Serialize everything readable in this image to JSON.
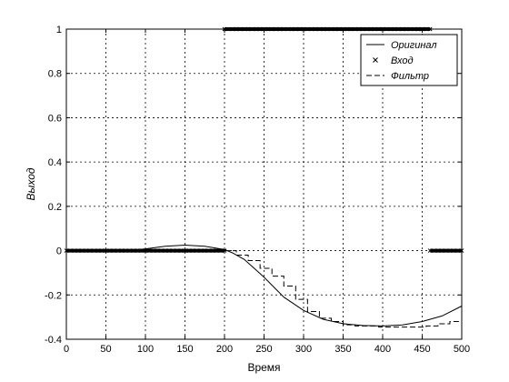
{
  "chart_data": {
    "type": "line",
    "title": "",
    "xlabel": "Время",
    "ylabel": "Выход",
    "xlim": [
      0,
      500
    ],
    "ylim": [
      -0.4,
      1
    ],
    "xticks": [
      0,
      50,
      100,
      150,
      200,
      250,
      300,
      350,
      400,
      450,
      500
    ],
    "yticks": [
      -0.4,
      -0.2,
      0,
      0.2,
      0.4,
      0.6,
      0.8,
      1
    ],
    "ytick_labels": [
      "-0.4",
      "-0.2",
      "0",
      "0.2",
      "0.4",
      "0.6",
      "0.8",
      "1"
    ],
    "grid": true,
    "legend_position": "top-right",
    "series": [
      {
        "name": "Оригинал",
        "style": "solid",
        "x": [
          70,
          100,
          125,
          150,
          175,
          200,
          210,
          225,
          250,
          275,
          300,
          325,
          350,
          375,
          400,
          425,
          450,
          475,
          500
        ],
        "y": [
          -0.002,
          0.008,
          0.02,
          0.025,
          0.02,
          0.005,
          -0.01,
          -0.04,
          -0.12,
          -0.21,
          -0.27,
          -0.31,
          -0.33,
          -0.338,
          -0.34,
          -0.335,
          -0.32,
          -0.295,
          -0.25
        ]
      },
      {
        "name": "Вход",
        "style": "markers-x",
        "segments": [
          {
            "x": [
              0,
              200
            ],
            "y": 0
          },
          {
            "x": [
              200,
              460
            ],
            "y": 1
          },
          {
            "x": [
              460,
              500
            ],
            "y": 0
          }
        ]
      },
      {
        "name": "Фильтр",
        "style": "dashed",
        "x": [
          200,
          215,
          230,
          245,
          260,
          275,
          290,
          305,
          320,
          335,
          350,
          365,
          380,
          395,
          410,
          425,
          440,
          455,
          470,
          485,
          500
        ],
        "y": [
          0,
          -0.02,
          -0.045,
          -0.08,
          -0.115,
          -0.16,
          -0.22,
          -0.275,
          -0.305,
          -0.32,
          -0.335,
          -0.34,
          -0.34,
          -0.345,
          -0.345,
          -0.345,
          -0.345,
          -0.34,
          -0.33,
          -0.32,
          -0.29
        ]
      }
    ]
  }
}
